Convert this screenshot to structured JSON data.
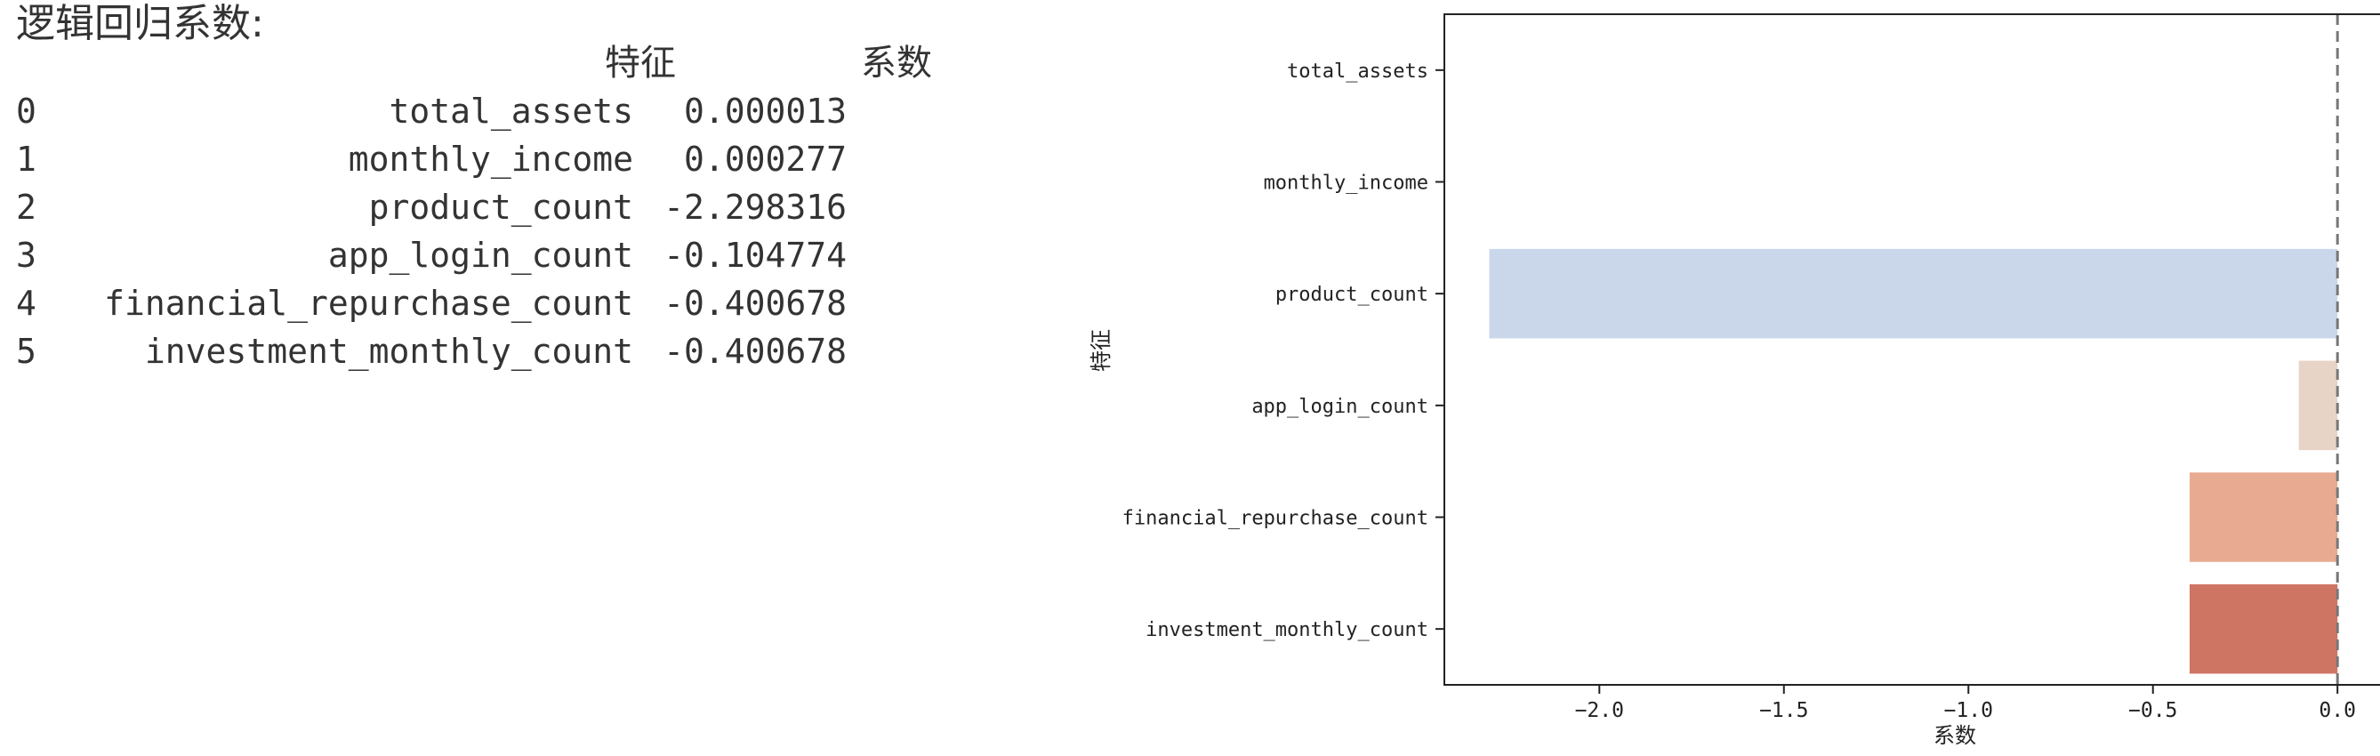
{
  "printout": {
    "heading": "逻辑回归系数:",
    "columns": [
      "特征",
      "系数"
    ],
    "rows": [
      {
        "index": "0",
        "feature": "total_assets",
        "coef": "0.000013"
      },
      {
        "index": "1",
        "feature": "monthly_income",
        "coef": "0.000277"
      },
      {
        "index": "2",
        "feature": "product_count",
        "coef": "-2.298316"
      },
      {
        "index": "3",
        "feature": "app_login_count",
        "coef": "-0.104774"
      },
      {
        "index": "4",
        "feature": "financial_repurchase_count",
        "coef": "-0.400678"
      },
      {
        "index": "5",
        "feature": "investment_monthly_count",
        "coef": "-0.400678"
      }
    ]
  },
  "chart_data": {
    "type": "bar",
    "orientation": "horizontal",
    "title": "",
    "xlabel": "系数",
    "ylabel": "特征",
    "categories": [
      "total_assets",
      "monthly_income",
      "product_count",
      "app_login_count",
      "financial_repurchase_count",
      "investment_monthly_count"
    ],
    "values": [
      1.3e-05,
      0.000277,
      -2.298316,
      -0.104774,
      -0.400678,
      -0.400678
    ],
    "colors": [
      "#f2f2f2",
      "#f2f2f2",
      "#cad7ea",
      "#e8d3c7",
      "#e8aa91",
      "#cf7564"
    ],
    "xlim": [
      -2.42,
      0.12
    ],
    "xticks": [
      -2.0,
      -1.5,
      -1.0,
      -0.5,
      0.0
    ],
    "xtick_labels": [
      "−2.0",
      "−1.5",
      "−1.0",
      "−0.5",
      "0.0"
    ],
    "reference_line": {
      "x": 0.0,
      "style": "dashed",
      "color": "#777777"
    },
    "grid": false,
    "legend": "none"
  }
}
